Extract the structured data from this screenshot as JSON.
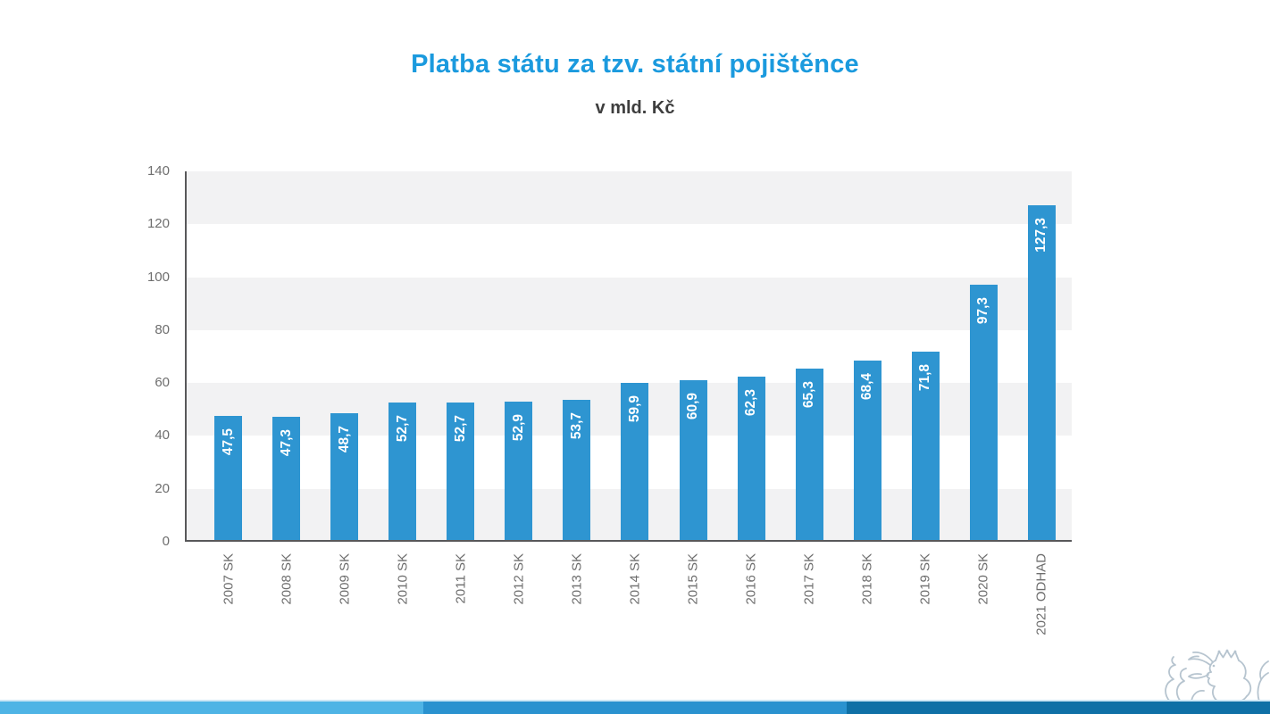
{
  "slide": {
    "title": "Platba státu za tzv. státní pojištěnce",
    "subtitle": "v mld. Kč",
    "title_color": "#1b9ade",
    "subtitle_color": "#3e3e3e",
    "background_color": "#ffffff"
  },
  "chart_data": {
    "type": "bar",
    "title": "Platba státu za tzv. státní pojištěnce",
    "subtitle": "v mld. Kč",
    "unit": "mld. Kč",
    "categories": [
      "2007 SK",
      "2008 SK",
      "2009 SK",
      "2010 SK",
      "2011 SK",
      "2012 SK",
      "2013 SK",
      "2014 SK",
      "2015 SK",
      "2016 SK",
      "2017 SK",
      "2018 SK",
      "2019 SK",
      "2020 SK",
      "2021 ODHAD"
    ],
    "values": [
      47.5,
      47.3,
      48.7,
      52.7,
      52.7,
      52.9,
      53.7,
      59.9,
      60.9,
      62.3,
      65.3,
      68.4,
      71.8,
      97.3,
      127.3
    ],
    "value_labels": [
      "47,5",
      "47,3",
      "48,7",
      "52,7",
      "52,7",
      "52,9",
      "53,7",
      "59,9",
      "60,9",
      "62,3",
      "65,3",
      "68,4",
      "71,8",
      "97,3",
      "127,3"
    ],
    "xlabel": "",
    "ylabel": "",
    "ylim": [
      0,
      140
    ],
    "yticks": [
      0,
      20,
      40,
      60,
      80,
      100,
      120,
      140
    ],
    "grid": "alternating horizontal gray bands every 20 units",
    "legend": "none",
    "bar_color": "#2e95d1",
    "band_color": "#f2f2f3",
    "axis_color": "#58585a",
    "tick_label_color": "#6e6e6e",
    "value_label_color": "#ffffff"
  },
  "footer": {
    "segments": [
      {
        "name": "left",
        "color": "#4fb4e5"
      },
      {
        "name": "middle",
        "color": "#2a92cf"
      },
      {
        "name": "right",
        "color": "#0f70a6"
      }
    ],
    "top_strip_color": "#cde7f5"
  },
  "logo": {
    "name": "czech-heraldic-lion",
    "color": "#b6c4cf"
  }
}
